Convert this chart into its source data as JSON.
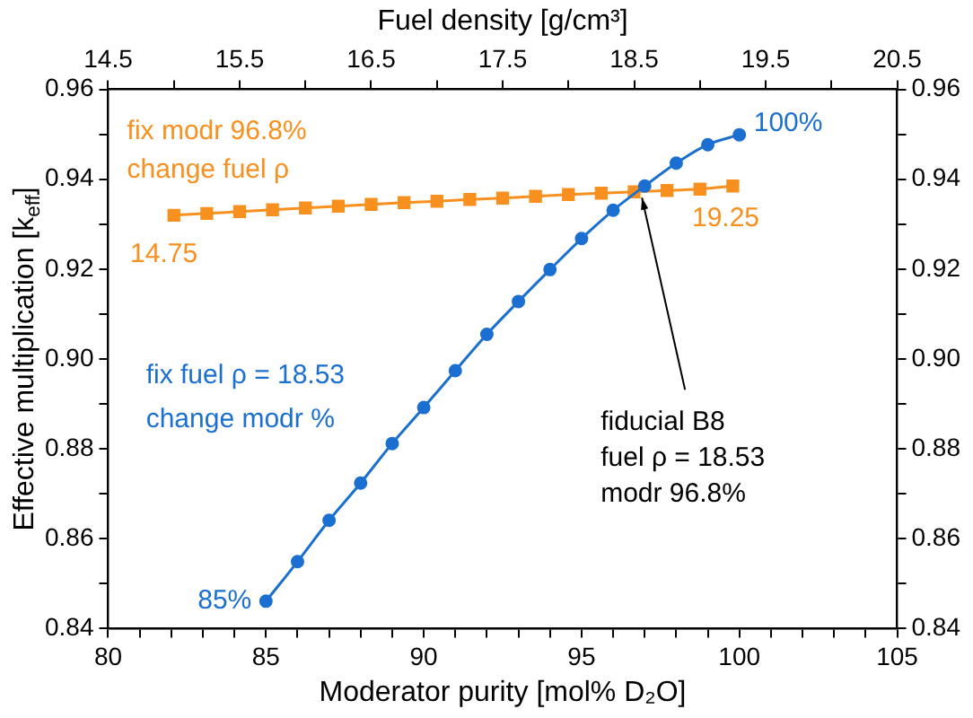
{
  "chart_data": {
    "type": "line",
    "xlabel": "Moderator purity [mol% D₂O]",
    "x2label": "Fuel density [g/cm³]",
    "ylabel": "Effective multiplication [k$_{eff}$]",
    "series": [
      {
        "color": "#1b6fd0",
        "marker": "circle",
        "x": [
          85,
          86,
          87,
          88,
          89,
          90,
          91,
          92,
          93,
          94,
          95,
          96,
          97,
          98,
          99,
          100
        ],
        "values": [
          0.8461,
          0.8549,
          0.8641,
          0.8724,
          0.8812,
          0.8892,
          0.8974,
          0.9055,
          0.9128,
          0.9199,
          0.9268,
          0.9331,
          0.9385,
          0.9436,
          0.9477,
          0.9499
        ]
      },
      {
        "color": "#f7901e",
        "marker": "square",
        "axis": "x2",
        "x": [
          15.0,
          15.25,
          15.5,
          15.75,
          16.0,
          16.25,
          16.5,
          16.75,
          17.0,
          17.25,
          17.5,
          17.75,
          18.0,
          18.25,
          18.5,
          18.75,
          19.0,
          19.25
        ],
        "values": [
          0.932,
          0.9324,
          0.9328,
          0.9332,
          0.9336,
          0.934,
          0.9344,
          0.9348,
          0.9351,
          0.9355,
          0.9358,
          0.9362,
          0.9366,
          0.9369,
          0.9372,
          0.9375,
          0.9378,
          0.9385
        ]
      }
    ],
    "xlim": [
      80,
      105
    ],
    "xticks": [
      80,
      {
        "value": 81,
        "label": null
      },
      {
        "value": 82,
        "label": null
      },
      {
        "value": 83,
        "label": null
      },
      {
        "value": 84,
        "label": null
      },
      85,
      {
        "value": 86,
        "label": null
      },
      {
        "value": 87,
        "label": null
      },
      {
        "value": 88,
        "label": null
      },
      {
        "value": 89,
        "label": null
      },
      90,
      {
        "value": 91,
        "label": null
      },
      {
        "value": 92,
        "label": null
      },
      {
        "value": 93,
        "label": null
      },
      {
        "value": 94,
        "label": null
      },
      95,
      {
        "value": 96,
        "label": null
      },
      {
        "value": 97,
        "label": null
      },
      {
        "value": 98,
        "label": null
      },
      {
        "value": 99,
        "label": null
      },
      100,
      {
        "value": 101,
        "label": null
      },
      {
        "value": 102,
        "label": null
      },
      {
        "value": 103,
        "label": null
      },
      {
        "value": 104,
        "label": null
      },
      105
    ],
    "x2lim": [
      14.5,
      20.5
    ],
    "x2ticks": [
      {
        "value": 14.5,
        "label": "14.5"
      },
      {
        "value": 15,
        "label": null
      },
      {
        "value": 15.5,
        "label": "15.5"
      },
      {
        "value": 16,
        "label": null
      },
      {
        "value": 16.5,
        "label": "16.5"
      },
      {
        "value": 17,
        "label": null
      },
      {
        "value": 17.5,
        "label": "17.5"
      },
      {
        "value": 18,
        "label": null
      },
      {
        "value": 18.5,
        "label": "18.5"
      },
      {
        "value": 19,
        "label": null
      },
      {
        "value": 19.5,
        "label": "19.5"
      },
      {
        "value": 20,
        "label": null
      },
      {
        "value": 20.5,
        "label": "20.5"
      }
    ],
    "ylim": [
      0.84,
      0.96
    ],
    "yticks": [
      {
        "value": 0.84,
        "label": "0.84"
      },
      {
        "value": 0.85,
        "label": null
      },
      {
        "value": 0.86,
        "label": "0.86"
      },
      {
        "value": 0.87,
        "label": null
      },
      {
        "value": 0.88,
        "label": "0.88"
      },
      {
        "value": 0.89,
        "label": null
      },
      {
        "value": 0.9,
        "label": "0.90"
      },
      {
        "value": 0.91,
        "label": null
      },
      {
        "value": 0.92,
        "label": "0.92"
      },
      {
        "value": 0.93,
        "label": null
      },
      {
        "value": 0.94,
        "label": "0.94"
      },
      {
        "value": 0.95,
        "label": null
      },
      {
        "value": 0.96,
        "label": "0.96"
      }
    ],
    "y2lim": [
      0.84,
      0.96
    ],
    "y2ticks": [
      {
        "value": 0.84,
        "label": "0.84"
      },
      {
        "value": 0.85,
        "label": null
      },
      {
        "value": 0.86,
        "label": "0.86"
      },
      {
        "value": 0.87,
        "label": null
      },
      {
        "value": 0.88,
        "label": "0.88"
      },
      {
        "value": 0.89,
        "label": null
      },
      {
        "value": 0.9,
        "label": "0.90"
      },
      {
        "value": 0.91,
        "label": null
      },
      {
        "value": 0.92,
        "label": "0.92"
      },
      {
        "value": 0.93,
        "label": null
      },
      {
        "value": 0.94,
        "label": "0.94"
      },
      {
        "value": 0.95,
        "label": null
      },
      {
        "value": 0.96,
        "label": "0.96"
      }
    ],
    "grid": false,
    "legend": false,
    "annotations": [
      "fix modr 96.8%",
      "change fuel ρ",
      "14.75",
      "19.25",
      {
        "text": "100%",
        "x": 100,
        "y": 0.9499
      },
      {
        "text": "85%",
        "x": 85,
        "y": 0.8461
      },
      "fix fuel ρ = 18.53",
      "change modr %",
      {
        "text": "fiducial B8\nfuel ρ = 18.53\nmodr 96.8%",
        "x": 96.8,
        "y": 0.9375
      }
    ]
  }
}
